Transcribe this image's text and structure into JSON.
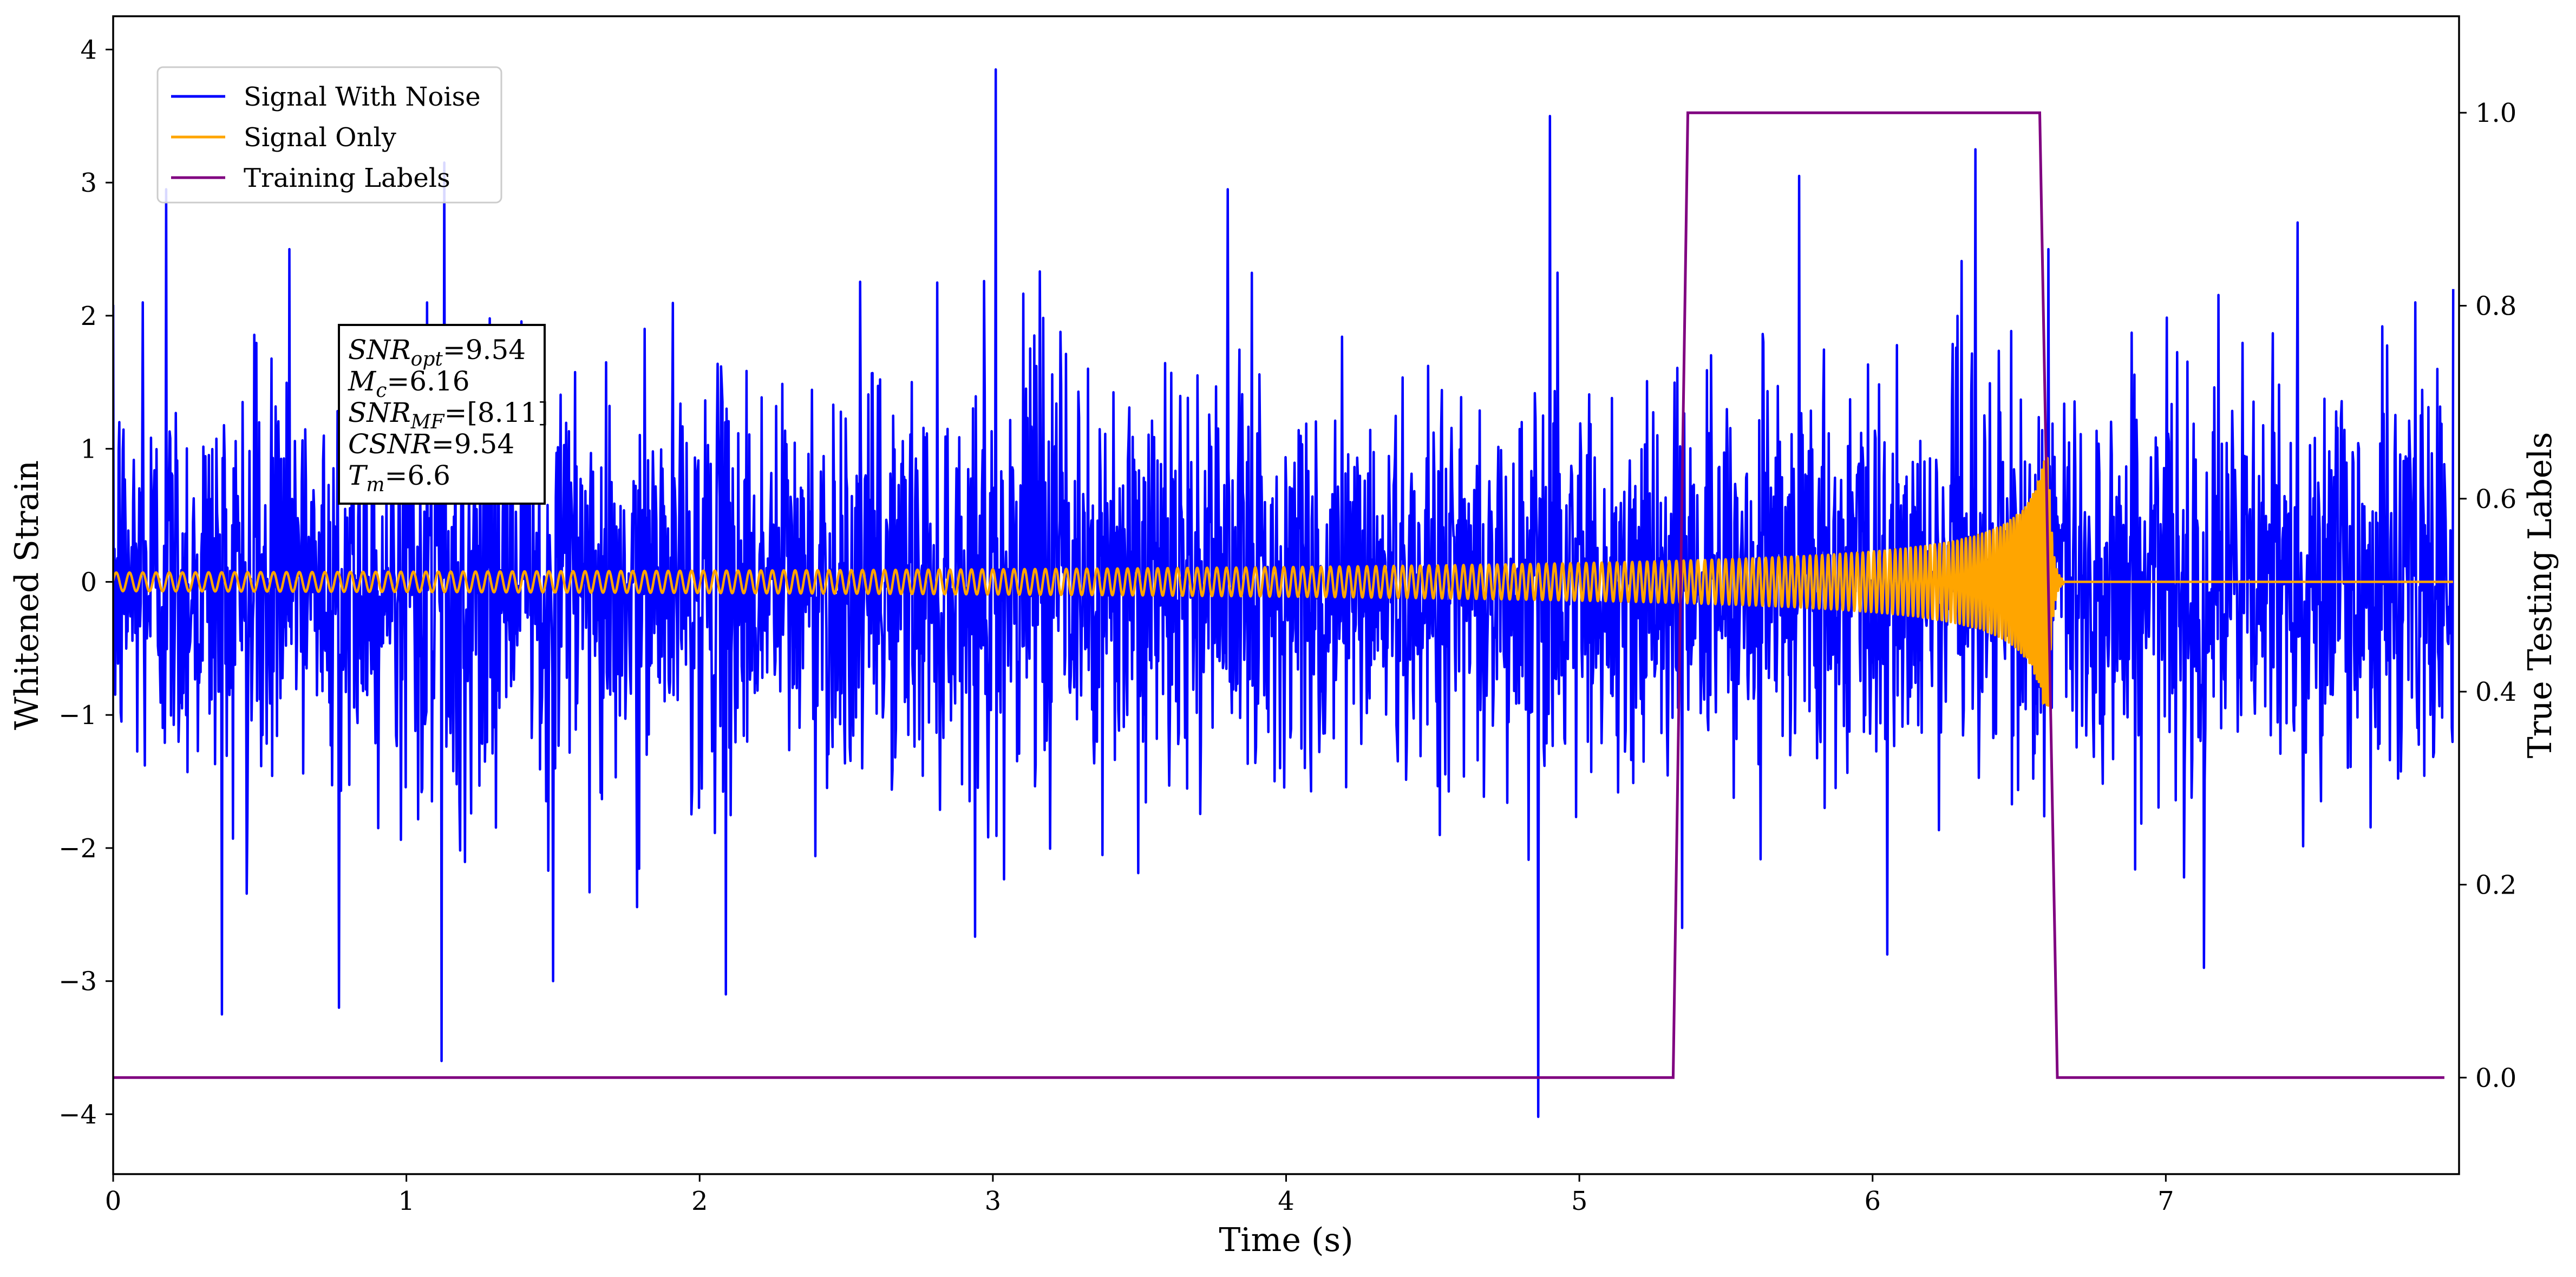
{
  "chart_data": {
    "type": "line",
    "title": "",
    "xlabel": "Time (s)",
    "ylabel": "Whitened Strain",
    "y2label": "True Testing Labels",
    "xlim": [
      0,
      8.0
    ],
    "ylim": [
      -4.45,
      4.25
    ],
    "y2lim": [
      -0.1,
      1.1
    ],
    "x_ticks": [
      0,
      1,
      2,
      3,
      4,
      5,
      6,
      7
    ],
    "x_tick_labels": [
      "0",
      "1",
      "2",
      "3",
      "4",
      "5",
      "6",
      "7"
    ],
    "y_ticks": [
      -4,
      -3,
      -2,
      -1,
      0,
      1,
      2,
      3,
      4
    ],
    "y_tick_labels": [
      "−4",
      "−3",
      "−2",
      "−1",
      "0",
      "1",
      "2",
      "3",
      "4"
    ],
    "y2_ticks": [
      0.0,
      0.2,
      0.4,
      0.6,
      0.8,
      1.0
    ],
    "y2_tick_labels": [
      "0.0",
      "0.2",
      "0.4",
      "0.6",
      "0.8",
      "1.0"
    ],
    "grid": false,
    "legend_position": "top-left",
    "series": [
      {
        "name": "Signal With Noise",
        "color": "#0000ff",
        "axis": "left",
        "description_values": {
          "kind": "noise",
          "std": 0.75,
          "peaks": [
            [
              0.02,
              1.2
            ],
            [
              0.1,
              2.1
            ],
            [
              0.18,
              2.95
            ],
            [
              0.37,
              -3.25
            ],
            [
              0.6,
              2.5
            ],
            [
              0.77,
              -3.2
            ],
            [
              1.12,
              -3.6
            ],
            [
              1.13,
              3.15
            ],
            [
              1.5,
              -3.0
            ],
            [
              2.09,
              -3.1
            ],
            [
              3.01,
              3.85
            ],
            [
              3.8,
              2.95
            ],
            [
              4.86,
              -4.02
            ],
            [
              4.9,
              3.5
            ],
            [
              5.35,
              -2.6
            ],
            [
              5.75,
              3.05
            ],
            [
              6.35,
              3.25
            ],
            [
              6.6,
              2.5
            ],
            [
              6.05,
              -2.8
            ],
            [
              7.13,
              -2.9
            ],
            [
              7.45,
              2.7
            ],
            [
              7.85,
              2.1
            ],
            [
              7.98,
              2.2
            ]
          ]
        }
      },
      {
        "name": "Signal Only",
        "color": "#ffa500",
        "axis": "left",
        "description_values": {
          "kind": "chirp",
          "t_merger": 6.6,
          "start_amplitude": 0.07,
          "peak_amplitude": 0.93,
          "cycles_visible_first_second": 22,
          "after_merger_value": 0.0
        }
      },
      {
        "name": "Training Labels",
        "color": "#800080",
        "axis": "right",
        "x": [
          0.0,
          5.32,
          5.37,
          6.57,
          6.63,
          7.95
        ],
        "y": [
          0.0,
          0.0,
          1.0,
          1.0,
          0.0,
          0.0
        ]
      }
    ],
    "annotation": {
      "lines": [
        {
          "label": "SNR",
          "sub": "opt",
          "value": "=9.54"
        },
        {
          "label": "M",
          "sub": "c",
          "value": "=6.16"
        },
        {
          "label": "SNR",
          "sub": "MF",
          "value": "=[8.11]"
        },
        {
          "label": "CSNR",
          "sub": "",
          "value": "=9.54"
        },
        {
          "label": "T",
          "sub": "m",
          "value": "=6.6"
        }
      ]
    }
  }
}
